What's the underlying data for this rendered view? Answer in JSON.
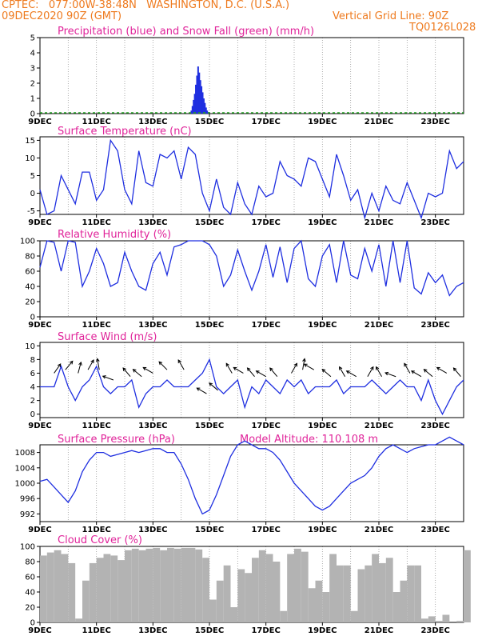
{
  "header": {
    "line1": "CPTEC:   077:00W-38:48N   WASHINGTON, D.C. (U.S.A.)",
    "run_time": "09DEC2020 90Z (GMT)",
    "grid_note": "Vertical Grid Line: 90Z",
    "code": "TQ0126L028"
  },
  "model_altitude": "Model Altitude: 110.108  m",
  "colors": {
    "line": "#1f2fe0",
    "precip": "#1f2fe0",
    "snow": "#20a020",
    "cloud": "#b3b3b3",
    "title": "#e0249a",
    "header": "#ee7a1e"
  },
  "chart_data": [
    {
      "type": "bar",
      "title": "Precipitation (blue) and Snow Fall (green) (mm/h)",
      "x_tick_labels": [
        "9DEC",
        "11DEC",
        "13DEC",
        "15DEC",
        "17DEC",
        "19DEC",
        "21DEC",
        "23DEC"
      ],
      "x_range_days": [
        0,
        15
      ],
      "ylim": [
        0,
        5
      ],
      "yticks": [
        0,
        1,
        2,
        3,
        4,
        5
      ],
      "series": [
        {
          "name": "Precipitation",
          "color": "#1f2fe0",
          "x_days": [
            5.36,
            5.4,
            5.44,
            5.48,
            5.52,
            5.56,
            5.6,
            5.64,
            5.68,
            5.72,
            5.76,
            5.8,
            5.84,
            5.88,
            5.92,
            5.96
          ],
          "values": [
            0.2,
            0.5,
            0.9,
            1.3,
            1.9,
            2.5,
            3.1,
            2.7,
            2.2,
            1.8,
            1.4,
            1.0,
            0.7,
            0.4,
            0.2,
            0.1
          ]
        },
        {
          "name": "Snow Fall",
          "color": "#20a020",
          "x_days": [
            0,
            15
          ],
          "values": [
            0,
            0
          ]
        }
      ]
    },
    {
      "type": "line",
      "title": "Surface Temperature (nC)",
      "x_tick_labels": [
        "9DEC",
        "11DEC",
        "13DEC",
        "15DEC",
        "17DEC",
        "19DEC",
        "21DEC",
        "23DEC"
      ],
      "x_range_days": [
        0,
        15
      ],
      "ylim": [
        -6,
        16
      ],
      "yticks": [
        -5,
        0,
        5,
        10,
        15
      ],
      "x_days": [
        0,
        0.25,
        0.5,
        0.75,
        1,
        1.25,
        1.5,
        1.75,
        2,
        2.25,
        2.5,
        2.75,
        3,
        3.25,
        3.5,
        3.75,
        4,
        4.25,
        4.5,
        4.75,
        5,
        5.25,
        5.5,
        5.75,
        6,
        6.25,
        6.5,
        6.75,
        7,
        7.25,
        7.5,
        7.75,
        8,
        8.25,
        8.5,
        8.75,
        9,
        9.25,
        9.5,
        9.75,
        10,
        10.25,
        10.5,
        10.75,
        11,
        11.25,
        11.5,
        11.75,
        12,
        12.25,
        12.5,
        12.75,
        13,
        13.25,
        13.5,
        13.75,
        14,
        14.25,
        14.5,
        14.75,
        15
      ],
      "values": [
        1,
        -6,
        -5,
        5,
        1,
        -3,
        6,
        6,
        -2,
        1,
        15,
        12,
        1,
        -3,
        12,
        3,
        2,
        11,
        10,
        12,
        4,
        13,
        11,
        0,
        -5,
        4,
        -4,
        -6,
        3,
        -3,
        -6,
        2,
        -1,
        0,
        9,
        5,
        4,
        2,
        10,
        9,
        4,
        -1,
        11,
        5,
        -2,
        1,
        -7,
        0,
        -5,
        2,
        -2,
        -3,
        3,
        -2,
        -7,
        0,
        -1,
        0,
        12,
        7,
        9
      ]
    },
    {
      "type": "line",
      "title": "Relative Humidity (%)",
      "x_tick_labels": [
        "9DEC",
        "11DEC",
        "13DEC",
        "15DEC",
        "17DEC",
        "19DEC",
        "21DEC",
        "23DEC"
      ],
      "x_range_days": [
        0,
        15
      ],
      "ylim": [
        0,
        100
      ],
      "yticks": [
        0,
        20,
        40,
        60,
        80,
        100
      ],
      "x_days": [
        0,
        0.25,
        0.5,
        0.75,
        1,
        1.25,
        1.5,
        1.75,
        2,
        2.25,
        2.5,
        2.75,
        3,
        3.25,
        3.5,
        3.75,
        4,
        4.25,
        4.5,
        4.75,
        5,
        5.25,
        5.5,
        5.75,
        6,
        6.25,
        6.5,
        6.75,
        7,
        7.25,
        7.5,
        7.75,
        8,
        8.25,
        8.5,
        8.75,
        9,
        9.25,
        9.5,
        9.75,
        10,
        10.25,
        10.5,
        10.75,
        11,
        11.25,
        11.5,
        11.75,
        12,
        12.25,
        12.5,
        12.75,
        13,
        13.25,
        13.5,
        13.75,
        14,
        14.25,
        14.5,
        14.75,
        15
      ],
      "values": [
        65,
        100,
        98,
        60,
        100,
        98,
        40,
        60,
        90,
        70,
        40,
        45,
        85,
        60,
        40,
        35,
        70,
        85,
        55,
        92,
        95,
        100,
        100,
        100,
        95,
        80,
        40,
        55,
        88,
        60,
        35,
        60,
        95,
        52,
        92,
        45,
        90,
        100,
        50,
        40,
        80,
        95,
        45,
        100,
        55,
        50,
        90,
        60,
        95,
        40,
        100,
        45,
        100,
        38,
        30,
        58,
        45,
        55,
        28,
        40,
        45
      ]
    },
    {
      "type": "line",
      "title": "Surface Wind (m/s)",
      "x_tick_labels": [
        "9DEC",
        "11DEC",
        "13DEC",
        "15DEC",
        "17DEC",
        "19DEC",
        "21DEC",
        "23DEC"
      ],
      "x_range_days": [
        0,
        15
      ],
      "ylim": [
        -0.5,
        10.5
      ],
      "yticks": [
        0,
        2,
        4,
        6,
        8,
        10
      ],
      "x_days": [
        0,
        0.25,
        0.5,
        0.75,
        1,
        1.25,
        1.5,
        1.75,
        2,
        2.25,
        2.5,
        2.75,
        3,
        3.25,
        3.5,
        3.75,
        4,
        4.25,
        4.5,
        4.75,
        5,
        5.25,
        5.5,
        5.75,
        6,
        6.25,
        6.5,
        6.75,
        7,
        7.25,
        7.5,
        7.75,
        8,
        8.25,
        8.5,
        8.75,
        9,
        9.25,
        9.5,
        9.75,
        10,
        10.25,
        10.5,
        10.75,
        11,
        11.25,
        11.5,
        11.75,
        12,
        12.25,
        12.5,
        12.75,
        13,
        13.25,
        13.5,
        13.75,
        14,
        14.25,
        14.5,
        14.75,
        15
      ],
      "values": [
        4,
        4,
        4,
        7,
        4,
        2,
        4,
        5,
        7,
        4,
        3,
        4,
        4,
        5,
        1,
        3,
        4,
        4,
        5,
        4,
        4,
        4,
        5,
        6,
        8,
        4,
        3,
        4,
        5,
        1,
        4,
        3,
        5,
        4,
        3,
        5,
        4,
        5,
        3,
        4,
        4,
        4,
        5,
        3,
        4,
        4,
        4,
        5,
        4,
        3,
        4,
        5,
        4,
        4,
        2,
        5,
        2,
        0,
        2,
        4,
        5
      ],
      "arrows": [
        {
          "x_day": 0.5,
          "value": 6,
          "deg": -55
        },
        {
          "x_day": 0.9,
          "value": 6.5,
          "deg": -50
        },
        {
          "x_day": 1.35,
          "value": 6,
          "deg": -75
        },
        {
          "x_day": 1.7,
          "value": 6.5,
          "deg": -60
        },
        {
          "x_day": 2.1,
          "value": 6.5,
          "deg": -100
        },
        {
          "x_day": 2.6,
          "value": 5,
          "deg": -160
        },
        {
          "x_day": 3.2,
          "value": 5.5,
          "deg": -130
        },
        {
          "x_day": 3.6,
          "value": 5.5,
          "deg": -140
        },
        {
          "x_day": 4.0,
          "value": 6,
          "deg": -150
        },
        {
          "x_day": 4.5,
          "value": 6.5,
          "deg": -135
        },
        {
          "x_day": 5.1,
          "value": 6.5,
          "deg": -120
        },
        {
          "x_day": 5.9,
          "value": 3,
          "deg": -150
        },
        {
          "x_day": 6.3,
          "value": 3.5,
          "deg": -140
        },
        {
          "x_day": 6.8,
          "value": 6,
          "deg": -120
        },
        {
          "x_day": 7.2,
          "value": 6,
          "deg": -150
        },
        {
          "x_day": 7.6,
          "value": 5.5,
          "deg": -130
        },
        {
          "x_day": 8.0,
          "value": 5.5,
          "deg": -150
        },
        {
          "x_day": 8.4,
          "value": 5.5,
          "deg": -130
        },
        {
          "x_day": 8.9,
          "value": 6,
          "deg": -60
        },
        {
          "x_day": 9.3,
          "value": 6.5,
          "deg": -80
        },
        {
          "x_day": 9.7,
          "value": 6.5,
          "deg": -150
        },
        {
          "x_day": 10.3,
          "value": 5.5,
          "deg": -140
        },
        {
          "x_day": 10.8,
          "value": 5.5,
          "deg": -120
        },
        {
          "x_day": 11.2,
          "value": 5.5,
          "deg": -150
        },
        {
          "x_day": 11.6,
          "value": 5.5,
          "deg": -60
        },
        {
          "x_day": 12.1,
          "value": 5.5,
          "deg": -120
        },
        {
          "x_day": 12.6,
          "value": 5.5,
          "deg": -160
        },
        {
          "x_day": 13.1,
          "value": 6,
          "deg": -120
        },
        {
          "x_day": 13.5,
          "value": 5.5,
          "deg": -150
        },
        {
          "x_day": 13.9,
          "value": 5.5,
          "deg": -140
        },
        {
          "x_day": 14.4,
          "value": 6,
          "deg": -150
        },
        {
          "x_day": 14.9,
          "value": 5.5,
          "deg": -130
        }
      ]
    },
    {
      "type": "line",
      "title": "Surface Pressure (hPa)",
      "x_tick_labels": [
        "9DEC",
        "11DEC",
        "13DEC",
        "15DEC",
        "17DEC",
        "19DEC",
        "21DEC",
        "23DEC"
      ],
      "x_range_days": [
        0,
        15
      ],
      "ylim": [
        990,
        1010
      ],
      "yticks": [
        992,
        996,
        1000,
        1004,
        1008
      ],
      "x_days": [
        0,
        0.25,
        0.5,
        0.75,
        1,
        1.25,
        1.5,
        1.75,
        2,
        2.25,
        2.5,
        2.75,
        3,
        3.25,
        3.5,
        3.75,
        4,
        4.25,
        4.5,
        4.75,
        5,
        5.25,
        5.5,
        5.75,
        6,
        6.25,
        6.5,
        6.75,
        7,
        7.25,
        7.5,
        7.75,
        8,
        8.25,
        8.5,
        8.75,
        9,
        9.25,
        9.5,
        9.75,
        10,
        10.25,
        10.5,
        10.75,
        11,
        11.25,
        11.5,
        11.75,
        12,
        12.25,
        12.5,
        12.75,
        13,
        13.25,
        13.5,
        13.75,
        14,
        14.25,
        14.5,
        14.75,
        15
      ],
      "values": [
        1000.5,
        1001,
        999,
        997,
        995,
        998,
        1003,
        1006,
        1008,
        1008,
        1007,
        1007.5,
        1008,
        1008.5,
        1008,
        1008.5,
        1009,
        1009,
        1008,
        1008,
        1005,
        1001,
        996,
        992,
        993,
        997,
        1002,
        1007,
        1010,
        1011,
        1010,
        1009,
        1009,
        1008,
        1006,
        1003,
        1000,
        998,
        996,
        994,
        993,
        994,
        996,
        998,
        1000,
        1001,
        1002,
        1004,
        1007,
        1009,
        1010,
        1009,
        1008,
        1009,
        1009.5,
        1010,
        1010,
        1011,
        1012,
        1011,
        1010
      ]
    },
    {
      "type": "bar",
      "title": "Cloud Cover (%)",
      "x_tick_labels": [
        "9DEC",
        "11DEC",
        "13DEC",
        "15DEC",
        "17DEC",
        "19DEC",
        "21DEC",
        "23DEC"
      ],
      "x_range_days": [
        0,
        15
      ],
      "ylim": [
        0,
        100
      ],
      "yticks": [
        0,
        20,
        40,
        60,
        80,
        100
      ],
      "x_days": [
        0,
        0.25,
        0.5,
        0.75,
        1,
        1.25,
        1.5,
        1.75,
        2,
        2.25,
        2.5,
        2.75,
        3,
        3.25,
        3.5,
        3.75,
        4,
        4.25,
        4.5,
        4.75,
        5,
        5.25,
        5.5,
        5.75,
        6,
        6.25,
        6.5,
        6.75,
        7,
        7.25,
        7.5,
        7.75,
        8,
        8.25,
        8.5,
        8.75,
        9,
        9.25,
        9.5,
        9.75,
        10,
        10.25,
        10.5,
        10.75,
        11,
        11.25,
        11.5,
        11.75,
        12,
        12.25,
        12.5,
        12.75,
        13,
        13.25,
        13.5,
        13.75,
        14,
        14.25,
        14.5,
        14.75,
        15
      ],
      "values": [
        88,
        92,
        95,
        90,
        78,
        5,
        55,
        78,
        85,
        90,
        88,
        82,
        95,
        97,
        95,
        97,
        98,
        95,
        98,
        97,
        98,
        98,
        96,
        85,
        30,
        55,
        75,
        20,
        70,
        65,
        85,
        95,
        90,
        80,
        15,
        90,
        97,
        93,
        45,
        55,
        40,
        90,
        75,
        75,
        15,
        70,
        75,
        90,
        78,
        85,
        40,
        55,
        75,
        75,
        5,
        8,
        2,
        10,
        0,
        2,
        95
      ]
    }
  ]
}
